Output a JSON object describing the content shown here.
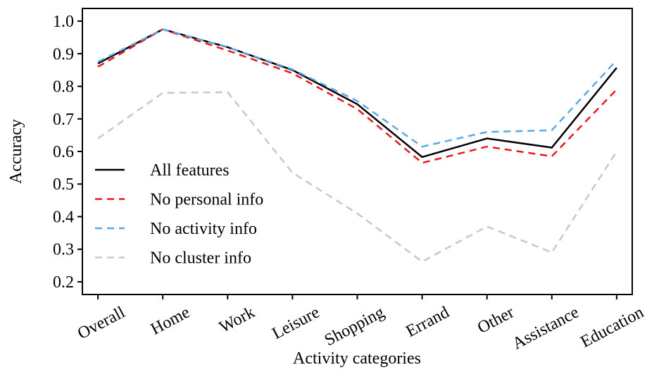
{
  "chart_data": {
    "type": "line",
    "x_label": "Activity categories",
    "y_label": "Accuracy",
    "categories": [
      "Overall",
      "Home",
      "Work",
      "Leisure",
      "Shopping",
      "Errand",
      "Other",
      "Assistance",
      "Education"
    ],
    "series": [
      {
        "name": "All features",
        "color": "#000000",
        "dash": false,
        "values": [
          0.87,
          0.975,
          0.92,
          0.85,
          0.745,
          0.583,
          0.64,
          0.612,
          0.857
        ]
      },
      {
        "name": "No personal info",
        "color": "#e8191c",
        "dash": true,
        "values": [
          0.86,
          0.975,
          0.91,
          0.84,
          0.73,
          0.565,
          0.615,
          0.585,
          0.79
        ]
      },
      {
        "name": "No activity info",
        "color": "#5aa9e6",
        "dash": true,
        "values": [
          0.875,
          0.975,
          0.92,
          0.852,
          0.755,
          0.615,
          0.66,
          0.665,
          0.88
        ]
      },
      {
        "name": "No cluster info",
        "color": "#c8c8c8",
        "dash": true,
        "values": [
          0.64,
          0.78,
          0.782,
          0.535,
          0.41,
          0.262,
          0.37,
          0.29,
          0.6
        ]
      }
    ],
    "ylim": [
      0.161,
      1.039
    ],
    "yticks": [
      0.2,
      0.3,
      0.4,
      0.5,
      0.6,
      0.7,
      0.8,
      0.9,
      {
        "value": 1.0,
        "label": "1.0"
      }
    ],
    "grid": false,
    "legend": "lower left"
  }
}
